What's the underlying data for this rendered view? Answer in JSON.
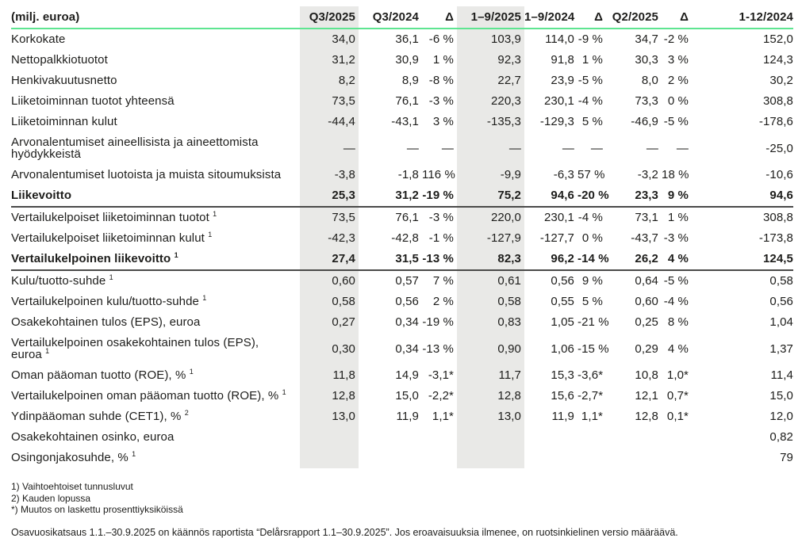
{
  "colors": {
    "accent_green": "#5ee591",
    "shade_gray": "#e9e9e7",
    "rule_dark": "#4a4a49",
    "text": "#1d1d1b"
  },
  "table": {
    "unit_label": "(milj. euroa)",
    "columns": [
      "Q3/2025",
      "Q3/2024",
      "Δ",
      "1–9/2025",
      "1–9/2024",
      "Δ",
      "Q2/2025",
      "Δ",
      "1-12/2024"
    ],
    "shaded_value_columns": [
      0,
      3
    ],
    "rows": [
      {
        "label": "Korkokate",
        "sup": "",
        "bold": false,
        "rule_below": false,
        "values": [
          "34,0",
          "36,1",
          "-6 %",
          "103,9",
          "114,0",
          "-9 %",
          "34,7",
          "-2 %",
          "152,0"
        ]
      },
      {
        "label": "Nettopalkkiotuotot",
        "sup": "",
        "bold": false,
        "rule_below": false,
        "values": [
          "31,2",
          "30,9",
          "1 %",
          "92,3",
          "91,8",
          "1 %",
          "30,3",
          "3 %",
          "124,3"
        ]
      },
      {
        "label": "Henkivakuutusnetto",
        "sup": "",
        "bold": false,
        "rule_below": false,
        "values": [
          "8,2",
          "8,9",
          "-8 %",
          "22,7",
          "23,9",
          "-5 %",
          "8,0",
          "2 %",
          "30,2"
        ]
      },
      {
        "label": "Liiketoiminnan tuotot yhteensä",
        "sup": "",
        "bold": false,
        "rule_below": false,
        "values": [
          "73,5",
          "76,1",
          "-3 %",
          "220,3",
          "230,1",
          "-4 %",
          "73,3",
          "0 %",
          "308,8"
        ]
      },
      {
        "label": "Liiketoiminnan kulut",
        "sup": "",
        "bold": false,
        "rule_below": false,
        "values": [
          "-44,4",
          "-43,1",
          "3 %",
          "-135,3",
          "-129,3",
          "5 %",
          "-46,9",
          "-5 %",
          "-178,6"
        ]
      },
      {
        "label": "Arvonalentumiset aineellisista ja aineettomista hyödykkeistä",
        "sup": "",
        "bold": false,
        "rule_below": false,
        "values": [
          "—",
          "—",
          "—",
          "—",
          "—",
          "—",
          "—",
          "—",
          "-25,0"
        ]
      },
      {
        "label": "Arvonalentumiset luotoista ja muista sitoumuksista",
        "sup": "",
        "bold": false,
        "rule_below": false,
        "values": [
          "-3,8",
          "-1,8",
          "116 %",
          "-9,9",
          "-6,3",
          "57 %",
          "-3,2",
          "18 %",
          "-10,6"
        ]
      },
      {
        "label": "Liikevoitto",
        "sup": "",
        "bold": true,
        "rule_below": true,
        "values": [
          "25,3",
          "31,2",
          "-19 %",
          "75,2",
          "94,6",
          "-20 %",
          "23,3",
          "9 %",
          "94,6"
        ]
      },
      {
        "label": "Vertailukelpoiset liiketoiminnan tuotot",
        "sup": "1",
        "bold": false,
        "rule_below": false,
        "values": [
          "73,5",
          "76,1",
          "-3 %",
          "220,0",
          "230,1",
          "-4 %",
          "73,1",
          "1 %",
          "308,8"
        ]
      },
      {
        "label": "Vertailukelpoiset liiketoiminnan kulut",
        "sup": "1",
        "bold": false,
        "rule_below": false,
        "values": [
          "-42,3",
          "-42,8",
          "-1 %",
          "-127,9",
          "-127,7",
          "0 %",
          "-43,7",
          "-3 %",
          "-173,8"
        ]
      },
      {
        "label": "Vertailukelpoinen liikevoitto",
        "sup": "1",
        "bold": true,
        "rule_below": true,
        "values": [
          "27,4",
          "31,5",
          "-13 %",
          "82,3",
          "96,2",
          "-14 %",
          "26,2",
          "4 %",
          "124,5"
        ]
      },
      {
        "label": "Kulu/tuotto-suhde",
        "sup": "1",
        "bold": false,
        "rule_below": false,
        "values": [
          "0,60",
          "0,57",
          "7 %",
          "0,61",
          "0,56",
          "9 %",
          "0,64",
          "-5 %",
          "0,58"
        ]
      },
      {
        "label": "Vertailukelpoinen kulu/tuotto-suhde",
        "sup": "1",
        "bold": false,
        "rule_below": false,
        "values": [
          "0,58",
          "0,56",
          "2 %",
          "0,58",
          "0,55",
          "5 %",
          "0,60",
          "-4 %",
          "0,56"
        ]
      },
      {
        "label": "Osakekohtainen tulos (EPS), euroa",
        "sup": "",
        "bold": false,
        "rule_below": false,
        "values": [
          "0,27",
          "0,34",
          "-19 %",
          "0,83",
          "1,05",
          "-21 %",
          "0,25",
          "8 %",
          "1,04"
        ]
      },
      {
        "label": "Vertailukelpoinen osakekohtainen tulos (EPS), euroa",
        "sup": "1",
        "bold": false,
        "rule_below": false,
        "values": [
          "0,30",
          "0,34",
          "-13 %",
          "0,90",
          "1,06",
          "-15 %",
          "0,29",
          "4 %",
          "1,37"
        ]
      },
      {
        "label": "Oman pääoman tuotto (ROE), %",
        "sup": "1",
        "bold": false,
        "rule_below": false,
        "values": [
          "11,8",
          "14,9",
          "-3,1*",
          "11,7",
          "15,3",
          "-3,6*",
          "10,8",
          "1,0*",
          "11,4"
        ]
      },
      {
        "label": "Vertailukelpoinen oman pääoman tuotto (ROE), %",
        "sup": "1",
        "bold": false,
        "rule_below": false,
        "values": [
          "12,8",
          "15,0",
          "-2,2*",
          "12,8",
          "15,6",
          "-2,7*",
          "12,1",
          "0,7*",
          "15,0"
        ]
      },
      {
        "label": "Ydinpääoman suhde (CET1), %",
        "sup": "2",
        "bold": false,
        "rule_below": false,
        "values": [
          "13,0",
          "11,9",
          "1,1*",
          "13,0",
          "11,9",
          "1,1*",
          "12,8",
          "0,1*",
          "12,0"
        ]
      },
      {
        "label": "Osakekohtainen osinko, euroa",
        "sup": "",
        "bold": false,
        "rule_below": false,
        "values": [
          "",
          "",
          "",
          "",
          "",
          "",
          "",
          "",
          "0,82"
        ]
      },
      {
        "label": "Osingonjakosuhde, %",
        "sup": "1",
        "bold": false,
        "rule_below": false,
        "values": [
          "",
          "",
          "",
          "",
          "",
          "",
          "",
          "",
          "79"
        ]
      }
    ]
  },
  "footnotes": [
    "1) Vaihtoehtoiset tunnusluvut",
    "2) Kauden lopussa",
    "*) Muutos on laskettu prosenttiyksiköissä"
  ],
  "disclaimer": "Osavuosikatsaus 1.1.–30.9.2025 on käännös raportista “Delårsrapport 1.1–30.9.2025”. Jos eroavaisuuksia ilmenee, on ruotsinkielinen versio määräävä."
}
